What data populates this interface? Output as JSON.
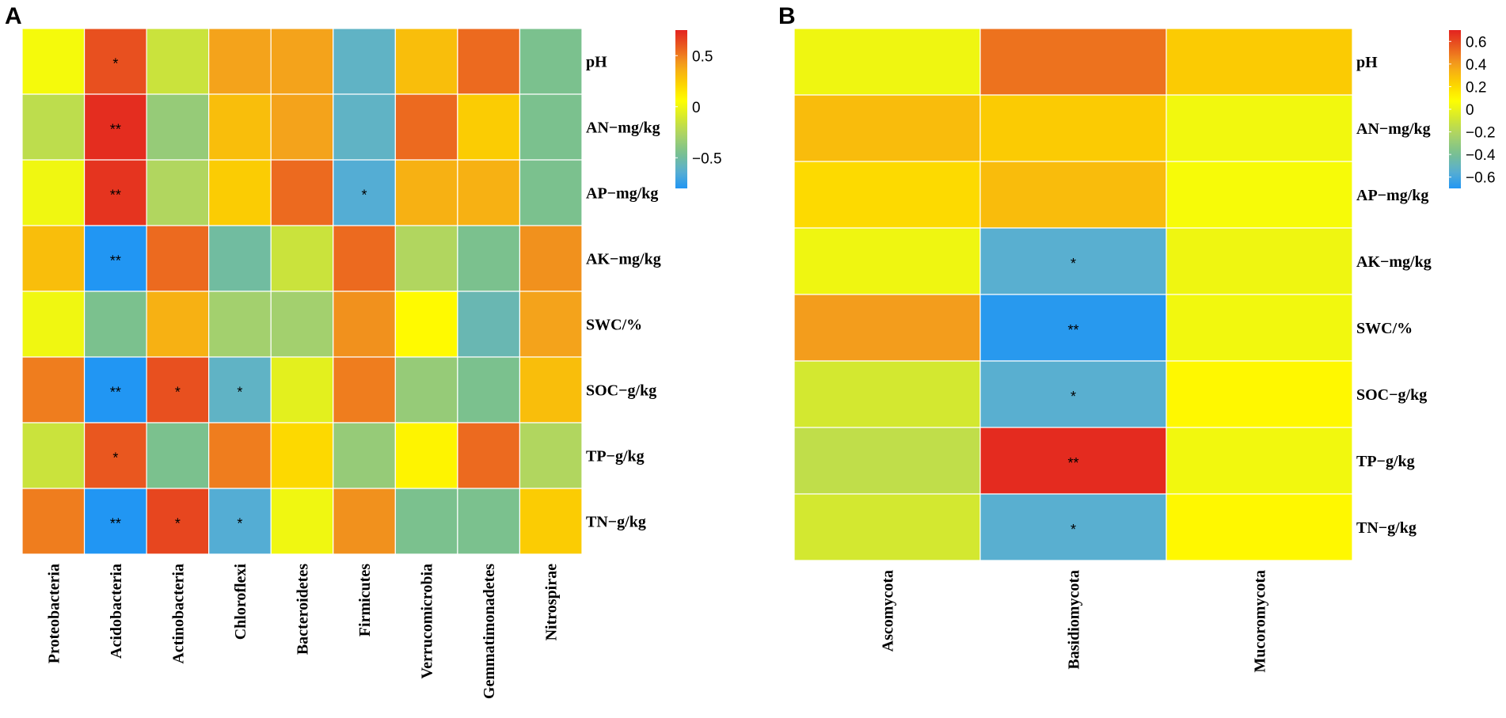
{
  "colors": {
    "scale_stops": [
      "#2196f3",
      "#5bb0cf",
      "#79c08f",
      "#a8d26a",
      "#d4e82f",
      "#ffff00",
      "#fcd000",
      "#f4a21c",
      "#ea5f1f",
      "#e3231f"
    ],
    "grid_line": "#ffffff"
  },
  "chart_data": [
    {
      "type": "heatmap",
      "panel": "A",
      "rows": [
        "pH",
        "AN−mg/kg",
        "AP−mg/kg",
        "AK−mg/kg",
        "SWC/%",
        "SOC−g/kg",
        "TP−g/kg",
        "TN−g/kg"
      ],
      "columns": [
        "Proteobacteria",
        "Acidobacteria",
        "Actinobacteria",
        "Chloroflexi",
        "Bacteroidetes",
        "Firmicutes",
        "Verrucomicrobia",
        "Gemmatimonadetes",
        "Nitrospirae"
      ],
      "values": [
        [
          0.02,
          0.62,
          -0.15,
          0.4,
          0.4,
          -0.6,
          0.3,
          0.55,
          -0.45
        ],
        [
          -0.2,
          0.72,
          -0.35,
          0.3,
          0.4,
          -0.6,
          0.55,
          0.25,
          -0.45
        ],
        [
          0.0,
          0.7,
          -0.25,
          0.25,
          0.55,
          -0.65,
          0.35,
          0.35,
          -0.45
        ],
        [
          0.3,
          -0.8,
          0.55,
          -0.5,
          -0.15,
          0.55,
          -0.25,
          -0.45,
          0.45
        ],
        [
          0.0,
          -0.45,
          0.35,
          -0.3,
          -0.3,
          0.45,
          0.08,
          -0.55,
          0.4
        ],
        [
          0.5,
          -0.8,
          0.62,
          -0.6,
          -0.05,
          0.5,
          -0.35,
          -0.45,
          0.3
        ],
        [
          -0.15,
          0.6,
          -0.45,
          0.5,
          0.2,
          -0.35,
          0.1,
          0.55,
          -0.25
        ],
        [
          0.5,
          -0.8,
          0.65,
          -0.65,
          0.0,
          0.45,
          -0.45,
          -0.45,
          0.25
        ]
      ],
      "significance": [
        [
          "",
          "*",
          "",
          "",
          "",
          "",
          "",
          "",
          ""
        ],
        [
          "",
          "**",
          "",
          "",
          "",
          "",
          "",
          "",
          ""
        ],
        [
          "",
          "**",
          "",
          "",
          "",
          "*",
          "",
          "",
          ""
        ],
        [
          "",
          "**",
          "",
          "",
          "",
          "",
          "",
          "",
          ""
        ],
        [
          "",
          "",
          "",
          "",
          "",
          "",
          "",
          "",
          ""
        ],
        [
          "",
          "**",
          "*",
          "*",
          "",
          "",
          "",
          "",
          ""
        ],
        [
          "",
          "*",
          "",
          "",
          "",
          "",
          "",
          "",
          ""
        ],
        [
          "",
          "**",
          "*",
          "*",
          "",
          "",
          "",
          "",
          ""
        ]
      ],
      "color_range": [
        -0.8,
        0.75
      ],
      "legend_ticks": [
        0.5,
        0,
        -0.5
      ],
      "legend_tick_labels": [
        "0.5",
        "0",
        "−0.5"
      ]
    },
    {
      "type": "heatmap",
      "panel": "B",
      "rows": [
        "pH",
        "AN−mg/kg",
        "AP−mg/kg",
        "AK−mg/kg",
        "SWC/%",
        "SOC−g/kg",
        "TP−g/kg",
        "TN−g/kg"
      ],
      "columns": [
        "Ascomycota",
        "Basidiomycota",
        "Mucoromycota"
      ],
      "values": [
        [
          0.02,
          0.5,
          0.25
        ],
        [
          0.3,
          0.25,
          0.03
        ],
        [
          0.2,
          0.3,
          0.05
        ],
        [
          0.02,
          -0.55,
          0.02
        ],
        [
          0.4,
          -0.68,
          0.03
        ],
        [
          -0.08,
          -0.55,
          0.1
        ],
        [
          -0.15,
          0.68,
          0.03
        ],
        [
          -0.08,
          -0.55,
          0.1
        ]
      ],
      "significance": [
        [
          "",
          "",
          ""
        ],
        [
          "",
          "",
          ""
        ],
        [
          "",
          "",
          ""
        ],
        [
          "",
          "*",
          ""
        ],
        [
          "",
          "**",
          ""
        ],
        [
          "",
          "*",
          ""
        ],
        [
          "",
          "**",
          ""
        ],
        [
          "",
          "*",
          ""
        ]
      ],
      "color_range": [
        -0.7,
        0.7
      ],
      "legend_ticks": [
        0.6,
        0.4,
        0.2,
        0,
        -0.2,
        -0.4,
        -0.6
      ],
      "legend_tick_labels": [
        "0.6",
        "0.4",
        "0.2",
        "0",
        "−0.2",
        "−0.4",
        "−0.6"
      ]
    }
  ]
}
